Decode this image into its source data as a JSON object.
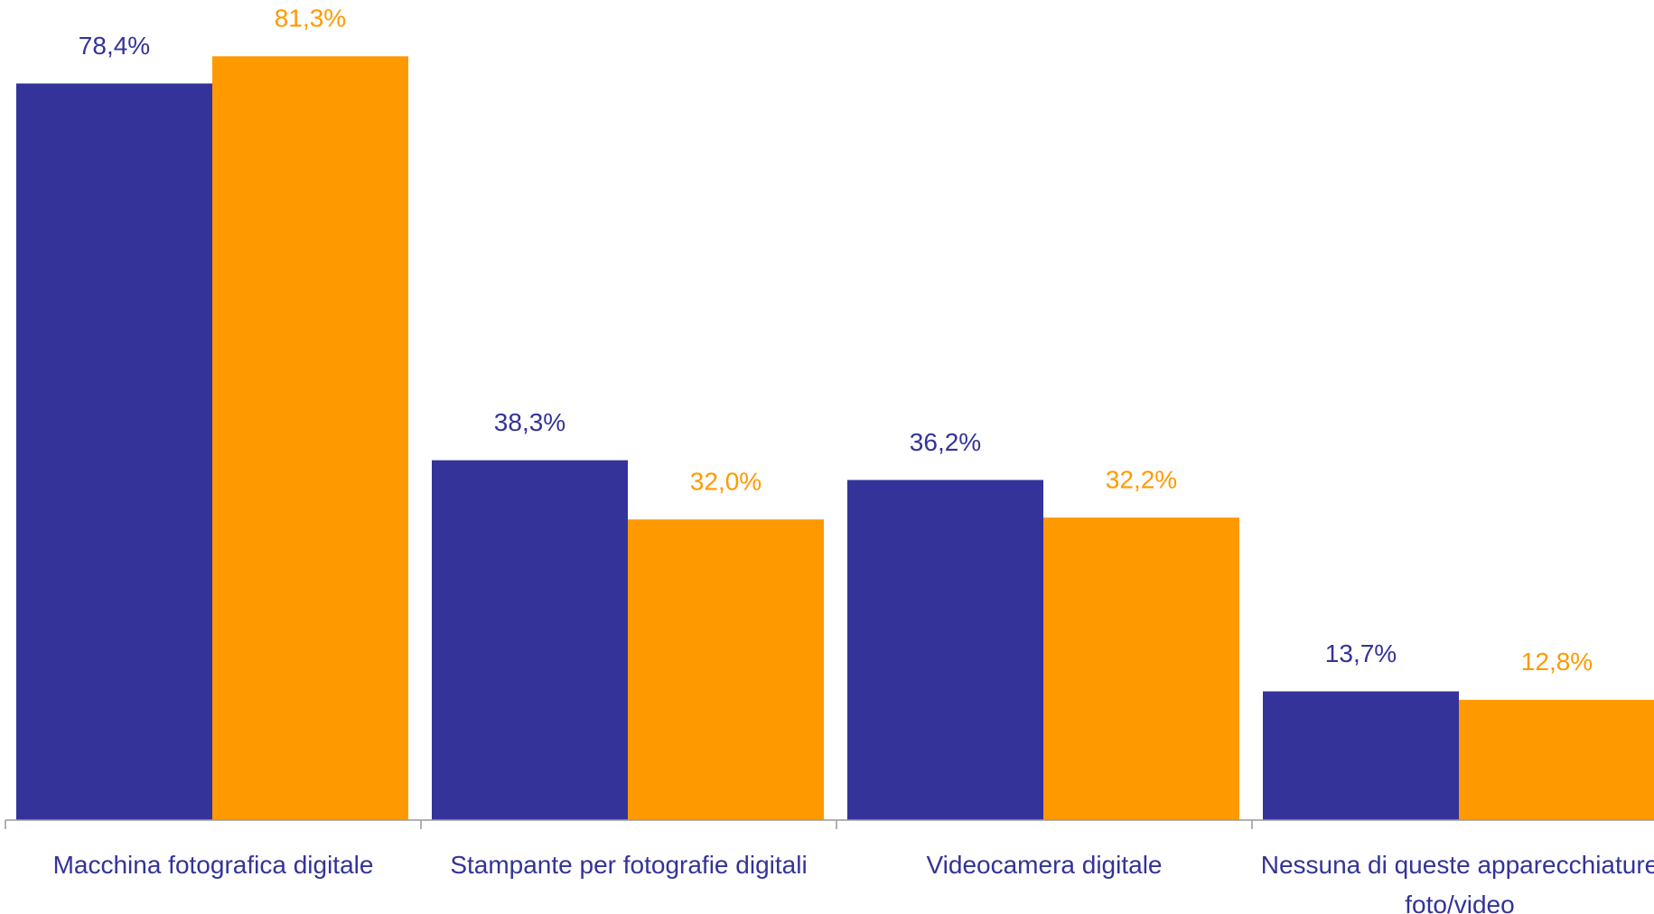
{
  "chart_data": {
    "type": "bar",
    "categories": [
      "Macchina fotografica digitale",
      "Stampante per fotografie digitali",
      "Videocamera digitale",
      "Nessuna di queste apparecchiature foto/video"
    ],
    "series": [
      {
        "color": "#333399",
        "values": [
          78.4,
          38.3,
          36.2,
          13.7
        ],
        "value_labels": [
          "78,4%",
          "38,3%",
          "36,2%",
          "13,7%"
        ]
      },
      {
        "color": "#ff9900",
        "values": [
          81.3,
          32.0,
          32.2,
          12.8
        ],
        "value_labels": [
          "81,3%",
          "32,0%",
          "32,2%",
          "12,8%"
        ]
      }
    ],
    "ylim": [
      0,
      87
    ]
  }
}
